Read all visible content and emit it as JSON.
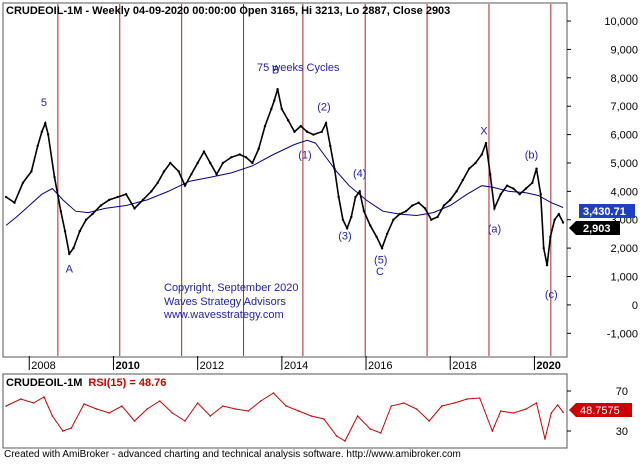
{
  "header": {
    "symbol": "CRUDEOIL-1M",
    "rest": " - Weekly 04-09-2020 00:00:00 Open 3165, Hi 3213, Lo 2887, Close 2903"
  },
  "annotations": {
    "cycle_label": "75 weeks Cycles",
    "copyright_lines": [
      "Copyright, September 2020",
      "Waves Strategy Advisors",
      "www.wavesstrategy.com"
    ]
  },
  "rsi_panel": {
    "symbol": "CRUDEOIL-1M",
    "rsi_label": "RSI(15)",
    "rsi_equals": " = 48.76",
    "last_tag": "48.7575",
    "ticks": [
      "70",
      "30"
    ]
  },
  "price_tags": {
    "ma": "3,430.71",
    "close": "2,903"
  },
  "footer_text": "Created with AmiBroker - advanced charting and technical analysis software. http://www.amibroker.com",
  "colors": {
    "price": "#000000",
    "ma": "#00008b",
    "cycle_lines": "#b22222",
    "rsi": "#cc0000",
    "labels": "#2222aa",
    "close_tag": "#000000",
    "ma_tag": "#1f3fbf",
    "rsi_tag": "#cc0000"
  },
  "chart_data": {
    "type": "line",
    "title": "CRUDEOIL-1M - Weekly 04-09-2020 00:00:00 Open 3165, Hi 3213, Lo 2887, Close 2903",
    "xlabel": "",
    "ylabel": "",
    "x_range": [
      2007.4,
      2020.75
    ],
    "ylim": [
      -1800,
      10600
    ],
    "y_ticks": [
      -1000,
      0,
      1000,
      2000,
      3000,
      4000,
      5000,
      6000,
      7000,
      8000,
      9000,
      10000
    ],
    "y_tick_labels": [
      "-1,000",
      "0",
      "1,000",
      "2,000",
      "3,000",
      "4,000",
      "5,000",
      "6,000",
      "7,000",
      "8,000",
      "9,000",
      "10,000"
    ],
    "x_tick_labels": [
      "2008",
      "2010",
      "2012",
      "2014",
      "2016",
      "2018",
      "2020"
    ],
    "x_ticks": [
      2008,
      2010,
      2012,
      2014,
      2016,
      2018,
      2020
    ],
    "grid": false,
    "series": [
      {
        "role": "price",
        "points": [
          [
            2007.45,
            3800
          ],
          [
            2007.65,
            3600
          ],
          [
            2007.85,
            4300
          ],
          [
            2008.05,
            4700
          ],
          [
            2008.2,
            5600
          ],
          [
            2008.3,
            6100
          ],
          [
            2008.38,
            6400
          ],
          [
            2008.45,
            6000
          ],
          [
            2008.6,
            4500
          ],
          [
            2008.75,
            3300
          ],
          [
            2008.85,
            2600
          ],
          [
            2008.95,
            1800
          ],
          [
            2009.05,
            2000
          ],
          [
            2009.2,
            2600
          ],
          [
            2009.35,
            3000
          ],
          [
            2009.5,
            3200
          ],
          [
            2009.7,
            3500
          ],
          [
            2009.9,
            3700
          ],
          [
            2010.1,
            3800
          ],
          [
            2010.3,
            3900
          ],
          [
            2010.5,
            3400
          ],
          [
            2010.7,
            3700
          ],
          [
            2010.9,
            4000
          ],
          [
            2011.05,
            4300
          ],
          [
            2011.2,
            4700
          ],
          [
            2011.35,
            5000
          ],
          [
            2011.55,
            4700
          ],
          [
            2011.7,
            4200
          ],
          [
            2011.85,
            4600
          ],
          [
            2012.0,
            5000
          ],
          [
            2012.15,
            5400
          ],
          [
            2012.3,
            5000
          ],
          [
            2012.45,
            4600
          ],
          [
            2012.6,
            5000
          ],
          [
            2012.8,
            5200
          ],
          [
            2013.0,
            5300
          ],
          [
            2013.15,
            5200
          ],
          [
            2013.3,
            5000
          ],
          [
            2013.45,
            5500
          ],
          [
            2013.6,
            6300
          ],
          [
            2013.75,
            6900
          ],
          [
            2013.82,
            7200
          ],
          [
            2013.9,
            7600
          ],
          [
            2014.0,
            6900
          ],
          [
            2014.15,
            6500
          ],
          [
            2014.3,
            6100
          ],
          [
            2014.45,
            6300
          ],
          [
            2014.6,
            6100
          ],
          [
            2014.75,
            6000
          ],
          [
            2014.95,
            6100
          ],
          [
            2015.05,
            6400
          ],
          [
            2015.15,
            5600
          ],
          [
            2015.25,
            4800
          ],
          [
            2015.35,
            3800
          ],
          [
            2015.45,
            3000
          ],
          [
            2015.55,
            2700
          ],
          [
            2015.65,
            3100
          ],
          [
            2015.75,
            3800
          ],
          [
            2015.85,
            4000
          ],
          [
            2015.95,
            3300
          ],
          [
            2016.1,
            2800
          ],
          [
            2016.25,
            2400
          ],
          [
            2016.38,
            2000
          ],
          [
            2016.5,
            2500
          ],
          [
            2016.65,
            3000
          ],
          [
            2016.8,
            3200
          ],
          [
            2016.95,
            3300
          ],
          [
            2017.1,
            3500
          ],
          [
            2017.25,
            3600
          ],
          [
            2017.4,
            3400
          ],
          [
            2017.55,
            3000
          ],
          [
            2017.7,
            3100
          ],
          [
            2017.85,
            3500
          ],
          [
            2018.0,
            3700
          ],
          [
            2018.15,
            4000
          ],
          [
            2018.3,
            4400
          ],
          [
            2018.45,
            4800
          ],
          [
            2018.6,
            5000
          ],
          [
            2018.75,
            5300
          ],
          [
            2018.85,
            5700
          ],
          [
            2018.95,
            4600
          ],
          [
            2019.05,
            3400
          ],
          [
            2019.2,
            3900
          ],
          [
            2019.35,
            4200
          ],
          [
            2019.5,
            4100
          ],
          [
            2019.65,
            3900
          ],
          [
            2019.8,
            4100
          ],
          [
            2019.95,
            4300
          ],
          [
            2020.05,
            4800
          ],
          [
            2020.15,
            3900
          ],
          [
            2020.22,
            2000
          ],
          [
            2020.3,
            1400
          ],
          [
            2020.38,
            2400
          ],
          [
            2020.48,
            3000
          ],
          [
            2020.58,
            3200
          ],
          [
            2020.68,
            2903
          ]
        ]
      },
      {
        "role": "moving-average",
        "points": [
          [
            2007.45,
            2800
          ],
          [
            2007.7,
            3100
          ],
          [
            2008.0,
            3500
          ],
          [
            2008.3,
            3900
          ],
          [
            2008.55,
            4100
          ],
          [
            2008.8,
            3700
          ],
          [
            2009.1,
            3300
          ],
          [
            2009.4,
            3250
          ],
          [
            2009.8,
            3400
          ],
          [
            2010.3,
            3500
          ],
          [
            2010.8,
            3700
          ],
          [
            2011.3,
            4000
          ],
          [
            2011.8,
            4350
          ],
          [
            2012.3,
            4500
          ],
          [
            2012.8,
            4650
          ],
          [
            2013.3,
            4900
          ],
          [
            2013.8,
            5300
          ],
          [
            2014.3,
            5650
          ],
          [
            2014.6,
            5800
          ],
          [
            2014.8,
            5700
          ],
          [
            2015.0,
            5300
          ],
          [
            2015.3,
            4700
          ],
          [
            2015.6,
            4200
          ],
          [
            2016.0,
            3700
          ],
          [
            2016.4,
            3300
          ],
          [
            2016.8,
            3200
          ],
          [
            2017.2,
            3150
          ],
          [
            2017.6,
            3250
          ],
          [
            2018.0,
            3500
          ],
          [
            2018.4,
            3900
          ],
          [
            2018.75,
            4200
          ],
          [
            2019.0,
            4150
          ],
          [
            2019.4,
            4000
          ],
          [
            2019.8,
            3950
          ],
          [
            2020.1,
            3850
          ],
          [
            2020.4,
            3600
          ],
          [
            2020.68,
            3430.71
          ]
        ]
      }
    ],
    "cycle_lines_x": [
      2008.68,
      2010.15,
      2011.62,
      2013.09,
      2014.5,
      2015.98,
      2017.45,
      2018.92,
      2020.39
    ],
    "wave_labels": [
      {
        "text": "5",
        "x": 2008.35,
        "y": 7000
      },
      {
        "text": "A",
        "x": 2008.95,
        "y": 1150
      },
      {
        "text": "B",
        "x": 2013.85,
        "y": 8150
      },
      {
        "text": "(2)",
        "x": 2015.0,
        "y": 6850
      },
      {
        "text": "(1)",
        "x": 2014.55,
        "y": 5150
      },
      {
        "text": "(3)",
        "x": 2015.5,
        "y": 2300
      },
      {
        "text": "(4)",
        "x": 2015.85,
        "y": 4500
      },
      {
        "text": "(5)",
        "x": 2016.35,
        "y": 1450
      },
      {
        "text": "C",
        "x": 2016.33,
        "y": 1050
      },
      {
        "text": "X",
        "x": 2018.8,
        "y": 6000
      },
      {
        "text": "(a)",
        "x": 2019.05,
        "y": 2550
      },
      {
        "text": "(b)",
        "x": 2019.93,
        "y": 5150
      },
      {
        "text": "(c)",
        "x": 2020.4,
        "y": 250
      }
    ],
    "rsi": {
      "ylim": [
        14,
        86
      ],
      "ticks": [
        70,
        30
      ],
      "points": [
        [
          2007.45,
          55
        ],
        [
          2007.8,
          62
        ],
        [
          2008.1,
          58
        ],
        [
          2008.35,
          64
        ],
        [
          2008.55,
          45
        ],
        [
          2008.8,
          30
        ],
        [
          2009.0,
          33
        ],
        [
          2009.3,
          57
        ],
        [
          2009.6,
          52
        ],
        [
          2009.9,
          48
        ],
        [
          2010.2,
          55
        ],
        [
          2010.5,
          40
        ],
        [
          2010.8,
          52
        ],
        [
          2011.1,
          60
        ],
        [
          2011.4,
          48
        ],
        [
          2011.7,
          40
        ],
        [
          2012.0,
          58
        ],
        [
          2012.3,
          45
        ],
        [
          2012.6,
          55
        ],
        [
          2012.9,
          52
        ],
        [
          2013.2,
          50
        ],
        [
          2013.5,
          60
        ],
        [
          2013.8,
          68
        ],
        [
          2014.1,
          55
        ],
        [
          2014.4,
          50
        ],
        [
          2014.7,
          45
        ],
        [
          2015.0,
          42
        ],
        [
          2015.3,
          25
        ],
        [
          2015.5,
          20
        ],
        [
          2015.8,
          45
        ],
        [
          2016.1,
          32
        ],
        [
          2016.35,
          28
        ],
        [
          2016.6,
          55
        ],
        [
          2016.9,
          58
        ],
        [
          2017.2,
          52
        ],
        [
          2017.5,
          40
        ],
        [
          2017.8,
          55
        ],
        [
          2018.1,
          58
        ],
        [
          2018.4,
          62
        ],
        [
          2018.7,
          63
        ],
        [
          2019.0,
          30
        ],
        [
          2019.2,
          50
        ],
        [
          2019.5,
          48
        ],
        [
          2019.8,
          52
        ],
        [
          2020.05,
          58
        ],
        [
          2020.25,
          22
        ],
        [
          2020.4,
          48
        ],
        [
          2020.55,
          56
        ],
        [
          2020.68,
          48.7575
        ]
      ]
    }
  }
}
